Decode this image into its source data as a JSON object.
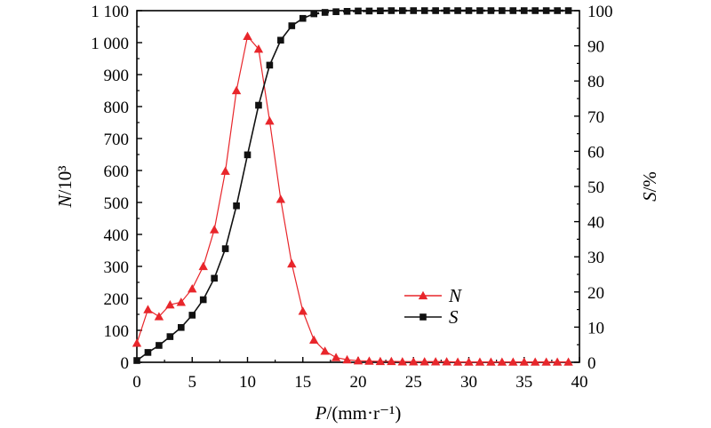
{
  "chart_data": {
    "type": "line",
    "x": [
      0,
      1,
      2,
      3,
      4,
      5,
      6,
      7,
      8,
      9,
      10,
      11,
      12,
      13,
      14,
      15,
      16,
      17,
      18,
      19,
      20,
      21,
      22,
      23,
      24,
      25,
      26,
      27,
      28,
      29,
      30,
      31,
      32,
      33,
      34,
      35,
      36,
      37,
      38,
      39
    ],
    "series": [
      {
        "name": "N",
        "axis": "left",
        "color": "#e8262b",
        "marker": "triangle",
        "values": [
          60,
          165,
          143,
          180,
          188,
          230,
          300,
          415,
          598,
          850,
          1020,
          980,
          755,
          510,
          308,
          160,
          70,
          35,
          15,
          8,
          5,
          4,
          3,
          3,
          2,
          2,
          2,
          2,
          2,
          1,
          1,
          1,
          1,
          1,
          1,
          1,
          1,
          1,
          1,
          1
        ]
      },
      {
        "name": "S",
        "axis": "right",
        "color": "#111111",
        "marker": "square",
        "line_dash": "mixed",
        "values": [
          0.5,
          2.8,
          4.8,
          7.3,
          9.9,
          13.4,
          17.8,
          23.9,
          32.3,
          44.5,
          59.0,
          73.1,
          84.5,
          91.6,
          95.7,
          97.8,
          99.1,
          99.5,
          99.7,
          99.8,
          99.9,
          99.9,
          99.95,
          100,
          100,
          100,
          100,
          100,
          100,
          100,
          100,
          100,
          100,
          100,
          100,
          100,
          100,
          100,
          100,
          100
        ]
      }
    ],
    "xlabel": "P/(mm·r⁻¹)",
    "ylabel": "N/10³",
    "y2label": "S/%",
    "xlim": [
      0,
      40
    ],
    "ylim": [
      0,
      1100
    ],
    "y2lim": [
      0,
      100
    ],
    "x_ticks": [
      "0",
      "5",
      "10",
      "15",
      "20",
      "25",
      "30",
      "35",
      "40"
    ],
    "y_ticks": [
      "0",
      "100",
      "200",
      "300",
      "400",
      "500",
      "600",
      "700",
      "800",
      "900",
      "1 000",
      "1 100"
    ],
    "y2_ticks": [
      "0",
      "10",
      "20",
      "30",
      "40",
      "50",
      "60",
      "70",
      "80",
      "90",
      "100"
    ],
    "legend": {
      "placement": "center-right",
      "entries": [
        "N",
        "S"
      ]
    },
    "grid": false
  }
}
